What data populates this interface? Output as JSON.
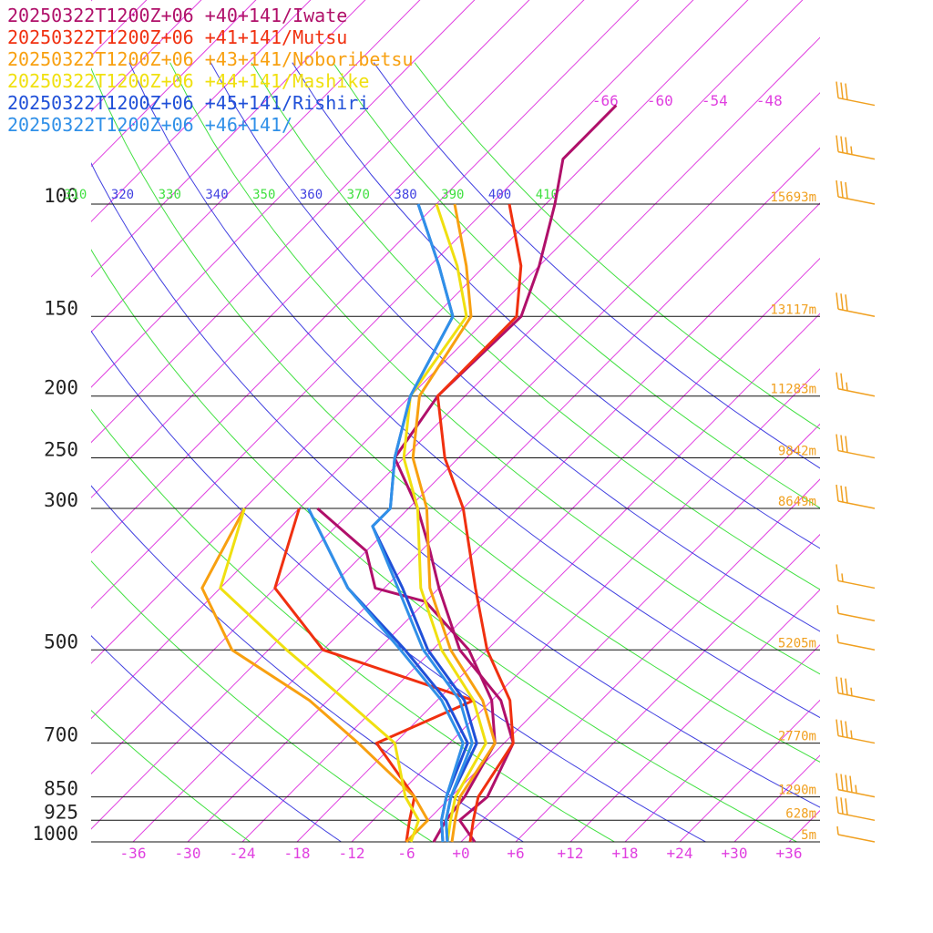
{
  "colors": {
    "isotherm": "#e040e0",
    "theta_blue": "#4040e0",
    "theta_green": "#40e040",
    "isobar": "#111111",
    "alt_label": "#f0a020",
    "wind_barb": "#f0a020"
  },
  "chart_data": {
    "type": "line",
    "subtype": "skew-t-log-p",
    "pressure_levels": [
      {
        "p": 100,
        "label": "100",
        "altitude": "15693m"
      },
      {
        "p": 150,
        "label": "150",
        "altitude": "13117m"
      },
      {
        "p": 200,
        "label": "200",
        "altitude": "11283m"
      },
      {
        "p": 250,
        "label": "250",
        "altitude": "9842m"
      },
      {
        "p": 300,
        "label": "300",
        "altitude": "8649m"
      },
      {
        "p": 500,
        "label": "500",
        "altitude": "5205m"
      },
      {
        "p": 700,
        "label": "700",
        "altitude": "2770m"
      },
      {
        "p": 850,
        "label": "850",
        "altitude": "1290m"
      },
      {
        "p": 925,
        "label": "925",
        "altitude": "628m"
      },
      {
        "p": 1000,
        "label": "1000",
        "altitude": "5m"
      }
    ],
    "temperature_ticks": [
      "-36",
      "-30",
      "-24",
      "-18",
      "-12",
      "-6",
      "+0",
      "+6",
      "+12",
      "+18",
      "+24",
      "+30",
      "+36"
    ],
    "temperature_tick_values": [
      -36,
      -30,
      -24,
      -18,
      -12,
      -6,
      0,
      6,
      12,
      18,
      24,
      30,
      36
    ],
    "upper_temperature_labels": [
      {
        "label": "-66",
        "t": -66
      },
      {
        "label": "-60",
        "t": -60
      },
      {
        "label": "-54",
        "t": -54
      },
      {
        "label": "-48",
        "t": -48
      }
    ],
    "theta_labels": [
      {
        "label": "310",
        "theta": 310,
        "color": "green"
      },
      {
        "label": "320",
        "theta": 320,
        "color": "blue"
      },
      {
        "label": "330",
        "theta": 330,
        "color": "green"
      },
      {
        "label": "340",
        "theta": 340,
        "color": "blue"
      },
      {
        "label": "350",
        "theta": 350,
        "color": "green"
      },
      {
        "label": "360",
        "theta": 360,
        "color": "blue"
      },
      {
        "label": "370",
        "theta": 370,
        "color": "green"
      },
      {
        "label": "380",
        "theta": 380,
        "color": "blue"
      },
      {
        "label": "390",
        "theta": 390,
        "color": "green"
      },
      {
        "label": "400",
        "theta": 400,
        "color": "blue"
      },
      {
        "label": "410",
        "theta": 410,
        "color": "green"
      }
    ],
    "ylim": [
      1000,
      100
    ],
    "series": [
      {
        "name": "20250322T1200Z+06 +40+141/Iwate",
        "color": "#b0106a",
        "temperature": [
          {
            "p": 1000,
            "t": 1.5
          },
          {
            "p": 925,
            "t": -2.5
          },
          {
            "p": 850,
            "t": -2
          },
          {
            "p": 700,
            "t": -5
          },
          {
            "p": 600,
            "t": -11
          },
          {
            "p": 500,
            "t": -21
          },
          {
            "p": 400,
            "t": -30
          },
          {
            "p": 350,
            "t": -35
          },
          {
            "p": 300,
            "t": -41
          },
          {
            "p": 250,
            "t": -49
          },
          {
            "p": 200,
            "t": -51
          },
          {
            "p": 150,
            "t": -50.5
          },
          {
            "p": 125,
            "t": -54
          },
          {
            "p": 100,
            "t": -59
          },
          {
            "p": 85,
            "t": -63
          },
          {
            "p": 70,
            "t": -63
          }
        ],
        "dewpoint": [
          {
            "p": 1000,
            "t": -3
          },
          {
            "p": 925,
            "t": -4
          },
          {
            "p": 850,
            "t": -4.5
          },
          {
            "p": 700,
            "t": -7
          },
          {
            "p": 600,
            "t": -12
          },
          {
            "p": 500,
            "t": -20
          },
          {
            "p": 420,
            "t": -30
          },
          {
            "p": 400,
            "t": -37
          },
          {
            "p": 350,
            "t": -42
          },
          {
            "p": 300,
            "t": -52
          }
        ]
      },
      {
        "name": "20250322T1200Z+06 +41+141/Mutsu",
        "color": "#f03010",
        "temperature": [
          {
            "p": 1000,
            "t": 1
          },
          {
            "p": 925,
            "t": -1
          },
          {
            "p": 850,
            "t": -3
          },
          {
            "p": 700,
            "t": -5
          },
          {
            "p": 600,
            "t": -10
          },
          {
            "p": 500,
            "t": -18
          },
          {
            "p": 400,
            "t": -26
          },
          {
            "p": 300,
            "t": -36
          },
          {
            "p": 250,
            "t": -43.5
          },
          {
            "p": 200,
            "t": -51
          },
          {
            "p": 150,
            "t": -51
          },
          {
            "p": 125,
            "t": -56
          },
          {
            "p": 100,
            "t": -64
          }
        ],
        "dewpoint": [
          {
            "p": 1000,
            "t": -6
          },
          {
            "p": 925,
            "t": -8
          },
          {
            "p": 850,
            "t": -10
          },
          {
            "p": 700,
            "t": -20
          },
          {
            "p": 600,
            "t": -14
          },
          {
            "p": 500,
            "t": -36
          },
          {
            "p": 400,
            "t": -48
          },
          {
            "p": 300,
            "t": -54
          }
        ]
      },
      {
        "name": "20250322T1200Z+06 +43+141/Noboribetsu",
        "color": "#f8a010",
        "temperature": [
          {
            "p": 1000,
            "t": -1
          },
          {
            "p": 925,
            "t": -3
          },
          {
            "p": 850,
            "t": -5
          },
          {
            "p": 700,
            "t": -7
          },
          {
            "p": 600,
            "t": -13
          },
          {
            "p": 500,
            "t": -22
          },
          {
            "p": 400,
            "t": -31
          },
          {
            "p": 300,
            "t": -40
          },
          {
            "p": 250,
            "t": -47
          },
          {
            "p": 200,
            "t": -53
          },
          {
            "p": 150,
            "t": -56
          },
          {
            "p": 125,
            "t": -62
          },
          {
            "p": 100,
            "t": -70
          }
        ],
        "dewpoint": [
          {
            "p": 1000,
            "t": -6
          },
          {
            "p": 925,
            "t": -6
          },
          {
            "p": 850,
            "t": -10
          },
          {
            "p": 700,
            "t": -22
          },
          {
            "p": 600,
            "t": -32
          },
          {
            "p": 500,
            "t": -46
          },
          {
            "p": 400,
            "t": -56
          },
          {
            "p": 300,
            "t": -60
          }
        ]
      },
      {
        "name": "20250322T1200Z+06 +44+141/Mashike",
        "color": "#f0e010",
        "temperature": [
          {
            "p": 1000,
            "t": -1.5
          },
          {
            "p": 925,
            "t": -3.5
          },
          {
            "p": 850,
            "t": -5.5
          },
          {
            "p": 700,
            "t": -8
          },
          {
            "p": 600,
            "t": -14
          },
          {
            "p": 500,
            "t": -23
          },
          {
            "p": 400,
            "t": -32
          },
          {
            "p": 300,
            "t": -41
          },
          {
            "p": 250,
            "t": -48
          },
          {
            "p": 200,
            "t": -54
          },
          {
            "p": 150,
            "t": -56.5
          },
          {
            "p": 125,
            "t": -63
          },
          {
            "p": 100,
            "t": -72
          }
        ],
        "dewpoint": [
          {
            "p": 1000,
            "t": -5.5
          },
          {
            "p": 925,
            "t": -7
          },
          {
            "p": 850,
            "t": -11
          },
          {
            "p": 700,
            "t": -18
          },
          {
            "p": 600,
            "t": -28
          },
          {
            "p": 500,
            "t": -40
          },
          {
            "p": 400,
            "t": -54
          },
          {
            "p": 300,
            "t": -60
          }
        ]
      },
      {
        "name": "20250322T1200Z+06 +45+141/Rishiri",
        "color": "#2050d8",
        "temperature": [
          {
            "p": 1000,
            "t": -1.5
          },
          {
            "p": 925,
            "t": -4
          },
          {
            "p": 850,
            "t": -6
          },
          {
            "p": 700,
            "t": -9
          },
          {
            "p": 600,
            "t": -15
          },
          {
            "p": 500,
            "t": -24.5
          },
          {
            "p": 400,
            "t": -34
          },
          {
            "p": 320,
            "t": -44
          },
          {
            "p": 300,
            "t": -44
          },
          {
            "p": 250,
            "t": -49
          },
          {
            "p": 200,
            "t": -54
          },
          {
            "p": 150,
            "t": -58
          },
          {
            "p": 125,
            "t": -65
          },
          {
            "p": 100,
            "t": -74
          }
        ],
        "dewpoint": [
          {
            "p": 1000,
            "t": -2
          },
          {
            "p": 925,
            "t": -4.5
          },
          {
            "p": 850,
            "t": -6.5
          },
          {
            "p": 700,
            "t": -10
          },
          {
            "p": 600,
            "t": -17
          },
          {
            "p": 500,
            "t": -27
          },
          {
            "p": 400,
            "t": -40
          },
          {
            "p": 300,
            "t": -53
          }
        ]
      },
      {
        "name": "20250322T1200Z+06 +46+141/",
        "color": "#3090e8",
        "temperature": [
          {
            "p": 1000,
            "t": -1.5
          },
          {
            "p": 925,
            "t": -4
          },
          {
            "p": 850,
            "t": -6
          },
          {
            "p": 700,
            "t": -9.5
          },
          {
            "p": 600,
            "t": -15.5
          },
          {
            "p": 500,
            "t": -25
          },
          {
            "p": 400,
            "t": -34.5
          },
          {
            "p": 320,
            "t": -44
          },
          {
            "p": 300,
            "t": -44
          },
          {
            "p": 250,
            "t": -49
          },
          {
            "p": 200,
            "t": -54
          },
          {
            "p": 150,
            "t": -58
          },
          {
            "p": 125,
            "t": -65
          },
          {
            "p": 100,
            "t": -74
          }
        ],
        "dewpoint": [
          {
            "p": 1000,
            "t": -2
          },
          {
            "p": 925,
            "t": -4.5
          },
          {
            "p": 850,
            "t": -6.5
          },
          {
            "p": 700,
            "t": -10.5
          },
          {
            "p": 600,
            "t": -17.5
          },
          {
            "p": 500,
            "t": -27.5
          },
          {
            "p": 400,
            "t": -40
          },
          {
            "p": 300,
            "t": -53
          }
        ]
      }
    ],
    "wind_barbs": [
      {
        "p": 70,
        "speed_kt": 30
      },
      {
        "p": 85,
        "speed_kt": 35
      },
      {
        "p": 100,
        "speed_kt": 30
      },
      {
        "p": 150,
        "speed_kt": 30
      },
      {
        "p": 200,
        "speed_kt": 25
      },
      {
        "p": 250,
        "speed_kt": 30
      },
      {
        "p": 300,
        "speed_kt": 30
      },
      {
        "p": 400,
        "speed_kt": 15
      },
      {
        "p": 450,
        "speed_kt": 5
      },
      {
        "p": 500,
        "speed_kt": 5
      },
      {
        "p": 600,
        "speed_kt": 35
      },
      {
        "p": 700,
        "speed_kt": 35
      },
      {
        "p": 850,
        "speed_kt": 45
      },
      {
        "p": 925,
        "speed_kt": 30
      },
      {
        "p": 1000,
        "speed_kt": 5
      }
    ]
  }
}
